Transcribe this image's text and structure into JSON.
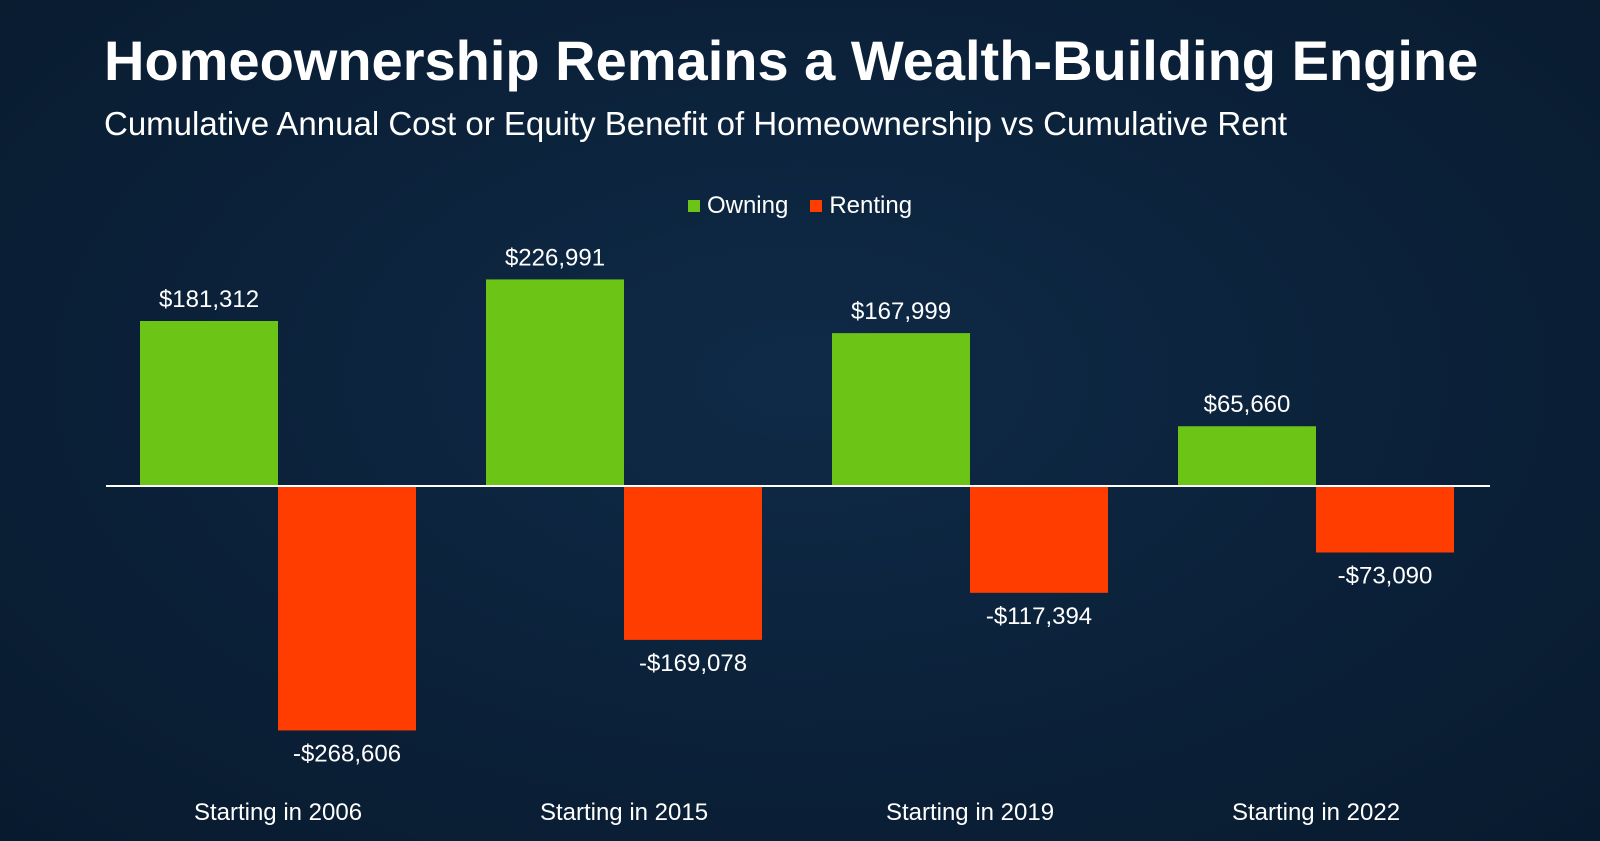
{
  "title": "Homeownership Remains a Wealth-Building Engine",
  "subtitle": "Cumulative Annual Cost or Equity Benefit of Homeownership vs Cumulative Rent",
  "colors": {
    "owning": "#6cc417",
    "renting": "#ff3d00",
    "axis": "#ffffff",
    "background": "#0b2139"
  },
  "chart_data": {
    "type": "bar",
    "title": "Homeownership Remains a Wealth-Building Engine",
    "subtitle": "Cumulative Annual Cost or Equity Benefit of Homeownership vs Cumulative Rent",
    "xlabel": "",
    "ylabel": "",
    "legend_position": "top-center",
    "grid": false,
    "categories": [
      "Starting in 2006",
      "Starting in 2015",
      "Starting in 2019",
      "Starting in 2022"
    ],
    "series": [
      {
        "name": "Owning",
        "color": "#6cc417",
        "values": [
          181312,
          226991,
          167999,
          65660
        ],
        "labels": [
          "$181,312",
          "$226,991",
          "$167,999",
          "$65,660"
        ]
      },
      {
        "name": "Renting",
        "color": "#ff3d00",
        "values": [
          -268606,
          -169078,
          -117394,
          -73090
        ],
        "labels": [
          "-$268,606",
          "-$169,078",
          "-$117,394",
          "-$73,090"
        ]
      }
    ]
  }
}
